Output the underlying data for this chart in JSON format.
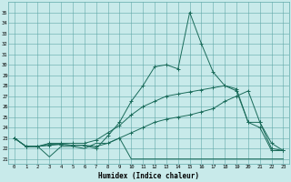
{
  "xlabel": "Humidex (Indice chaleur)",
  "xlim": [
    -0.5,
    23.5
  ],
  "ylim": [
    20.5,
    36.0
  ],
  "yticks": [
    21,
    22,
    23,
    24,
    25,
    26,
    27,
    28,
    29,
    30,
    31,
    32,
    33,
    34,
    35
  ],
  "xticks": [
    0,
    1,
    2,
    3,
    4,
    5,
    6,
    7,
    8,
    9,
    10,
    11,
    12,
    13,
    14,
    15,
    16,
    17,
    18,
    19,
    20,
    21,
    22,
    23
  ],
  "background_color": "#c8eaea",
  "grid_color": "#60a8a8",
  "line_color": "#1a6b5a",
  "line1_x": [
    0,
    1,
    2,
    3,
    4,
    5,
    6,
    7,
    8,
    9,
    10,
    11,
    12,
    13,
    14,
    15,
    16,
    17,
    18,
    19,
    20,
    21,
    22,
    23
  ],
  "line1_y": [
    23.0,
    22.2,
    22.2,
    21.2,
    22.2,
    22.2,
    22.0,
    22.5,
    22.5,
    23.0,
    21.0,
    21.0,
    21.0,
    21.0,
    21.0,
    21.0,
    21.0,
    21.0,
    21.0,
    21.0,
    21.0,
    21.0,
    21.0,
    21.0
  ],
  "line2_x": [
    0,
    1,
    2,
    3,
    4,
    5,
    6,
    7,
    8,
    9,
    10,
    11,
    12,
    13,
    14,
    15,
    16,
    17,
    18,
    19,
    20,
    21,
    22,
    23
  ],
  "line2_y": [
    23.0,
    22.2,
    22.2,
    22.3,
    22.4,
    22.3,
    22.3,
    22.2,
    22.5,
    23.0,
    23.5,
    24.0,
    24.5,
    24.8,
    25.0,
    25.2,
    25.5,
    25.8,
    26.5,
    27.0,
    27.5,
    24.5,
    22.0,
    21.8
  ],
  "line3_x": [
    0,
    1,
    2,
    3,
    4,
    5,
    6,
    7,
    8,
    9,
    10,
    11,
    12,
    13,
    14,
    15,
    16,
    17,
    18,
    19,
    20,
    21,
    22,
    23
  ],
  "line3_y": [
    23.0,
    22.2,
    22.2,
    22.5,
    22.5,
    22.5,
    22.5,
    22.8,
    23.5,
    24.2,
    25.2,
    26.0,
    26.5,
    27.0,
    27.2,
    27.4,
    27.6,
    27.8,
    28.0,
    27.5,
    24.5,
    24.5,
    22.5,
    21.8
  ],
  "line4_x": [
    0,
    1,
    2,
    3,
    4,
    5,
    6,
    7,
    8,
    9,
    10,
    11,
    12,
    13,
    14,
    15,
    16,
    17,
    18,
    19,
    20,
    21,
    22,
    23
  ],
  "line4_y": [
    23.0,
    22.2,
    22.2,
    22.4,
    22.4,
    22.3,
    22.3,
    22.0,
    23.2,
    24.5,
    26.5,
    28.0,
    29.8,
    30.0,
    29.6,
    35.0,
    32.0,
    29.3,
    28.0,
    27.7,
    24.5,
    24.0,
    21.8,
    21.8
  ]
}
